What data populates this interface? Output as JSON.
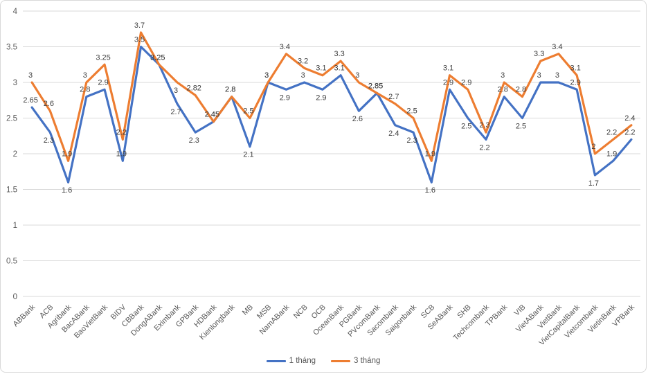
{
  "chart_data": {
    "type": "line",
    "title": "",
    "xlabel": "",
    "ylabel": "",
    "categories": [
      "ABBank",
      "ACB",
      "Agribank",
      "BacABank",
      "BaoVietBank",
      "BIDV",
      "CBBank",
      "DongABank",
      "Eximbank",
      "GPBank",
      "HDBank",
      "Kienlongbank",
      "MB",
      "MSB",
      "NamABank",
      "NCB",
      "OCB",
      "OceanBank",
      "PGBank",
      "PVcomBank",
      "Sacombank",
      "Saigonbank",
      "SCB",
      "SeABank",
      "SHB",
      "Techcombank",
      "TPBank",
      "VIB",
      "VietABank",
      "VietBank",
      "VietCapitalBank",
      "Vietcombank",
      "VietinBank",
      "VPBank"
    ],
    "series": [
      {
        "name": "1 tháng",
        "color": "#4472C4",
        "values": [
          2.65,
          2.3,
          1.6,
          2.8,
          2.9,
          1.9,
          3.5,
          3.25,
          2.7,
          2.3,
          2.45,
          2.8,
          2.1,
          3,
          2.9,
          3,
          2.9,
          3.1,
          2.6,
          2.85,
          2.4,
          2.3,
          1.6,
          2.9,
          2.5,
          2.2,
          2.8,
          2.5,
          3,
          3,
          2.9,
          1.7,
          1.9,
          2.2
        ],
        "label_pos": [
          "a",
          "b",
          "b",
          "a",
          "a",
          "a",
          "a",
          "a",
          "b",
          "b",
          "a",
          "a",
          "b",
          "a",
          "b",
          "a",
          "b",
          "a",
          "b",
          "a",
          "b",
          "b",
          "b",
          "a",
          "b",
          "b",
          "a",
          "b",
          "a",
          "a",
          "a",
          "b",
          "a",
          "a"
        ]
      },
      {
        "name": "3 tháng",
        "color": "#ED7D31",
        "values": [
          3,
          2.6,
          1.9,
          3,
          3.25,
          2.2,
          3.7,
          3.25,
          3,
          2.82,
          2.45,
          2.8,
          2.5,
          3,
          3.4,
          3.2,
          3.1,
          3.3,
          3,
          2.85,
          2.7,
          2.5,
          1.9,
          3.1,
          2.9,
          2.3,
          3,
          2.8,
          3.3,
          3.4,
          3.1,
          2,
          2.2,
          2.4
        ],
        "label_pos": [
          "a",
          "a",
          "a",
          "a",
          "a",
          "a",
          "a",
          "a",
          "b",
          "a",
          "a",
          "a",
          "a",
          "a",
          "a",
          "a",
          "a",
          "a",
          "a",
          "a",
          "a",
          "a",
          "a",
          "a",
          "a",
          "a",
          "a",
          "a",
          "a",
          "a",
          "a",
          "a",
          "a",
          "a"
        ]
      }
    ],
    "yticks": [
      0,
      0.5,
      1,
      1.5,
      2,
      2.5,
      3,
      3.5,
      4
    ],
    "ylim": [
      0,
      4
    ],
    "grid": true,
    "legend_position": "bottom",
    "x_label_rotation_deg": -45
  },
  "colors": {
    "grid": "#d9d9d9",
    "axis_text": "#595959",
    "data_label_text": "#404040",
    "frame_border": "#d8d8d8",
    "background": "#ffffff"
  }
}
